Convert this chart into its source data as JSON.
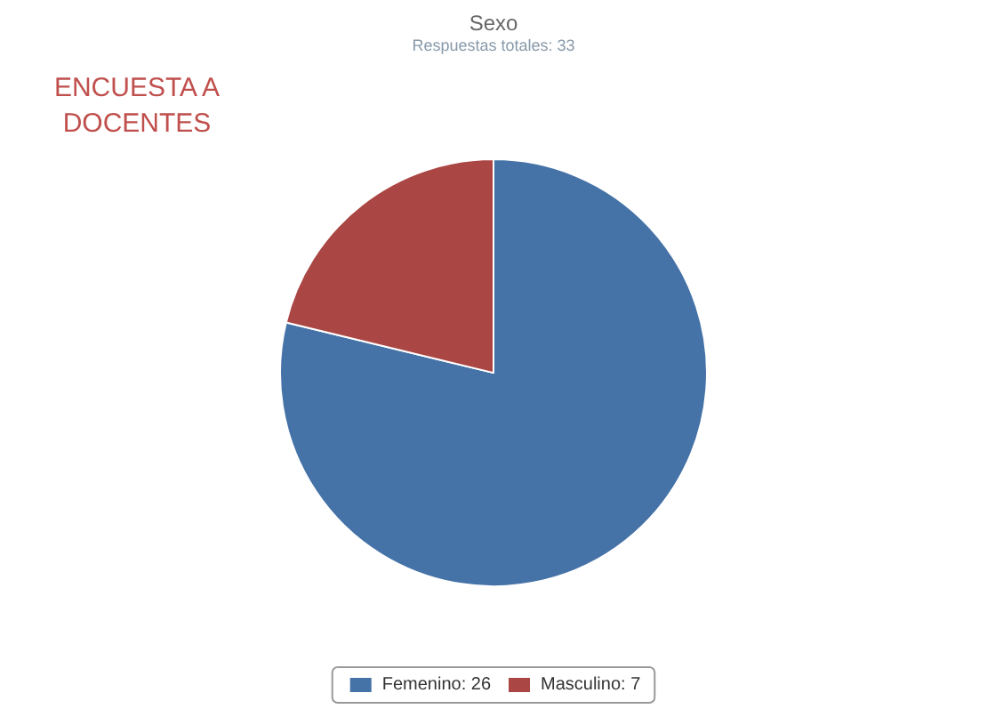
{
  "chart_data": {
    "type": "pie",
    "title": "Sexo",
    "subtitle": "Respuestas totales: 33",
    "categories": [
      "Femenino: 26",
      "Masculino: 7"
    ],
    "values": [
      26,
      7
    ],
    "colors": [
      "#4572a7",
      "#aa4643"
    ],
    "legend": "bottom",
    "annotations": [
      "ENCUESTA A DOCENTES"
    ]
  }
}
